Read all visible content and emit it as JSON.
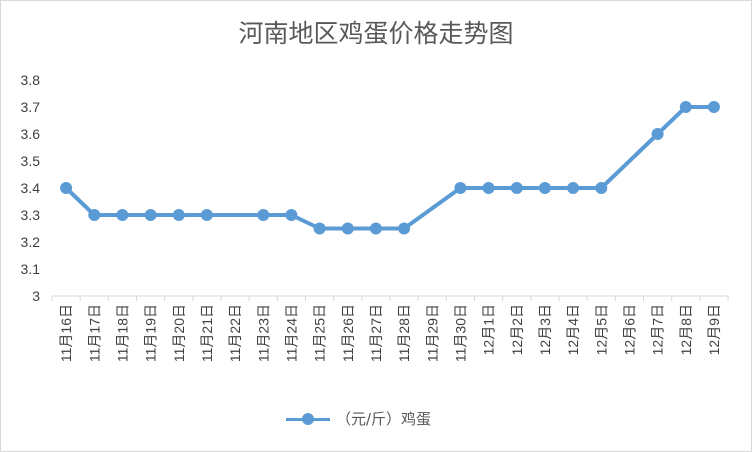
{
  "chart_data": {
    "type": "line",
    "title": "河南地区鸡蛋价格走势图",
    "categories": [
      "11月16日",
      "11月17日",
      "11月18日",
      "11月19日",
      "11月20日",
      "11月21日",
      "11月22日",
      "11月23日",
      "11月24日",
      "11月25日",
      "11月26日",
      "11月27日",
      "11月28日",
      "11月29日",
      "11月30日",
      "12月1日",
      "12月2日",
      "12月3日",
      "12月4日",
      "12月5日",
      "12月6日",
      "12月7日",
      "12月8日",
      "12月9日"
    ],
    "series": [
      {
        "name": "（元/斤）鸡蛋",
        "values": [
          3.4,
          3.3,
          3.3,
          3.3,
          3.3,
          3.3,
          null,
          3.3,
          3.3,
          3.25,
          3.25,
          3.25,
          3.25,
          null,
          3.4,
          3.4,
          3.4,
          3.4,
          3.4,
          3.4,
          null,
          3.6,
          3.7,
          3.7
        ]
      }
    ],
    "yticks": [
      "3",
      "3.1",
      "3.2",
      "3.3",
      "3.4",
      "3.5",
      "3.6",
      "3.7",
      "3.8"
    ],
    "ylim": [
      3,
      3.8
    ],
    "xlabel": "",
    "ylabel": "",
    "grid": false,
    "legend": "bottom",
    "color": "#5b9bd5"
  }
}
